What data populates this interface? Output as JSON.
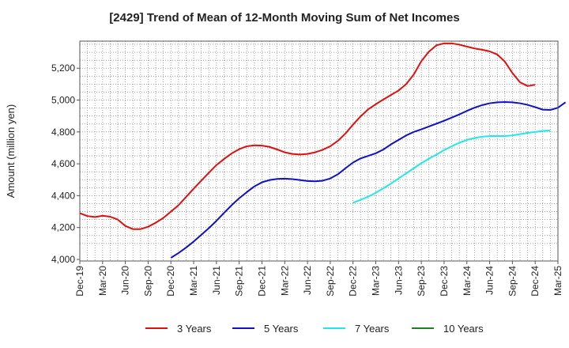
{
  "chart_data": {
    "type": "line",
    "title": "[2429]  Trend of Mean of 12-Month Moving Sum of Net Incomes",
    "ylabel": "Amount (million yen)",
    "xlabel": "",
    "ylim": [
      3990,
      5370
    ],
    "yticks": [
      "4,000",
      "4,200",
      "4,400",
      "4,600",
      "4,800",
      "5,000",
      "5,200"
    ],
    "ytick_values": [
      4000,
      4200,
      4400,
      4600,
      4800,
      5000,
      5200
    ],
    "x_tick_labels": [
      "Dec-19",
      "Mar-20",
      "Jun-20",
      "Sep-20",
      "Dec-20",
      "Mar-21",
      "Jun-21",
      "Sep-21",
      "Dec-21",
      "Mar-22",
      "Jun-22",
      "Sep-22",
      "Dec-22",
      "Mar-23",
      "Jun-23",
      "Sep-23",
      "Dec-23",
      "Mar-24",
      "Jun-24",
      "Sep-24",
      "Dec-24",
      "Mar-25"
    ],
    "grid": true,
    "legend_position": "bottom",
    "series": [
      {
        "name": "3 Years",
        "color": "#e01010",
        "start": "Dec-19",
        "values": [
          4290,
          4272,
          4266,
          4274,
          4268,
          4250,
          4210,
          4190,
          4190,
          4205,
          4230,
          4260,
          4300,
          4340,
          4392,
          4444,
          4494,
          4544,
          4592,
          4630,
          4665,
          4692,
          4710,
          4716,
          4714,
          4706,
          4690,
          4672,
          4662,
          4658,
          4662,
          4672,
          4688,
          4710,
          4744,
          4790,
          4846,
          4898,
          4942,
          4974,
          5004,
          5032,
          5060,
          5100,
          5160,
          5244,
          5304,
          5344,
          5356,
          5356,
          5348,
          5336,
          5324,
          5316,
          5306,
          5286,
          5242,
          5170,
          5112,
          5088,
          5096
        ]
      },
      {
        "name": "5 Years",
        "color": "#1010c8",
        "start": "Dec-20",
        "values": [
          4010,
          4040,
          4074,
          4112,
          4154,
          4196,
          4242,
          4292,
          4340,
          4384,
          4422,
          4458,
          4484,
          4498,
          4505,
          4507,
          4504,
          4498,
          4492,
          4490,
          4494,
          4508,
          4534,
          4572,
          4608,
          4634,
          4650,
          4666,
          4690,
          4722,
          4750,
          4778,
          4800,
          4816,
          4834,
          4852,
          4870,
          4890,
          4910,
          4932,
          4952,
          4968,
          4980,
          4986,
          4988,
          4986,
          4980,
          4970,
          4956,
          4940,
          4938,
          4952,
          4986
        ]
      },
      {
        "name": "7 Years",
        "color": "#20e8e8",
        "start": "Dec-22",
        "values": [
          4356,
          4374,
          4394,
          4418,
          4446,
          4476,
          4508,
          4540,
          4572,
          4604,
          4632,
          4658,
          4686,
          4710,
          4732,
          4750,
          4762,
          4770,
          4774,
          4774,
          4774,
          4778,
          4786,
          4794,
          4800,
          4806,
          4810
        ]
      },
      {
        "name": "10 Years",
        "color": "#208020",
        "start": "Dec-24",
        "values": []
      }
    ]
  }
}
